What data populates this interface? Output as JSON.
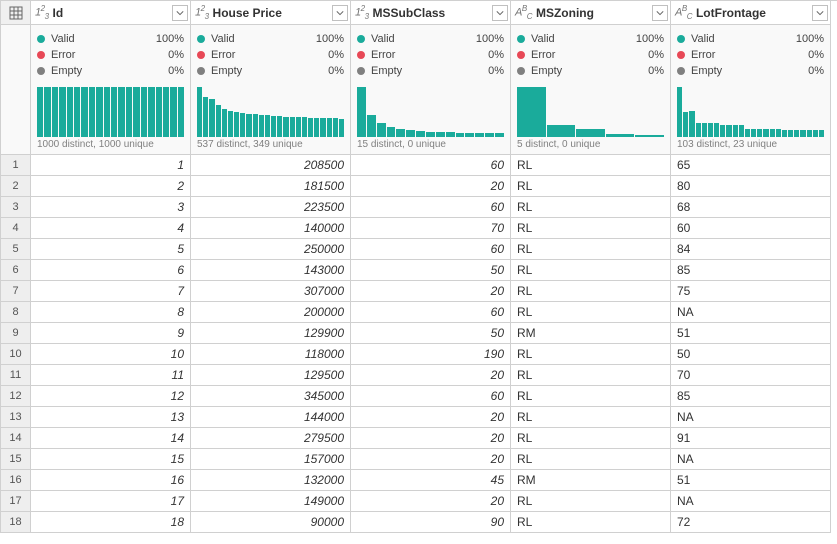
{
  "columns": [
    {
      "name": "Id",
      "dtype": "num",
      "valid": "100%",
      "error": "0%",
      "empty": "0%",
      "distinct": "1000 distinct, 1000 unique",
      "histogram": [
        50,
        50,
        50,
        50,
        50,
        50,
        50,
        50,
        50,
        50,
        50,
        50,
        50,
        50,
        50,
        50,
        50,
        50,
        50,
        50
      ]
    },
    {
      "name": "House Price",
      "dtype": "num",
      "valid": "100%",
      "error": "0%",
      "empty": "0%",
      "distinct": "537 distinct, 349 unique",
      "histogram": [
        50,
        40,
        38,
        32,
        28,
        26,
        25,
        24,
        23,
        23,
        22,
        22,
        21,
        21,
        20,
        20,
        20,
        20,
        19,
        19,
        19,
        19,
        19,
        18
      ]
    },
    {
      "name": "MSSubClass",
      "dtype": "num",
      "valid": "100%",
      "error": "0%",
      "empty": "0%",
      "distinct": "15 distinct, 0 unique",
      "histogram": [
        50,
        22,
        14,
        10,
        8,
        7,
        6,
        5,
        5,
        5,
        4,
        4,
        4,
        4,
        4
      ]
    },
    {
      "name": "MSZoning",
      "dtype": "text",
      "valid": "100%",
      "error": "0%",
      "empty": "0%",
      "distinct": "5 distinct, 0 unique",
      "histogram": [
        50,
        12,
        8,
        3,
        2
      ]
    },
    {
      "name": "LotFrontage",
      "dtype": "text",
      "valid": "100%",
      "error": "0%",
      "empty": "0%",
      "distinct": "103 distinct, 23 unique",
      "histogram": [
        50,
        25,
        26,
        14,
        14,
        14,
        14,
        12,
        12,
        12,
        12,
        8,
        8,
        8,
        8,
        8,
        8,
        7,
        7,
        7,
        7,
        7,
        7,
        7
      ]
    }
  ],
  "labels": {
    "valid": "Valid",
    "error": "Error",
    "empty": "Empty"
  },
  "colors": {
    "valid": "#1aab9b",
    "error": "#e74856",
    "empty": "#808080",
    "bar": "#1aab9b",
    "profile_bg": "#f9f9f9",
    "rowhdr_bg": "#eeeeee",
    "border": "#d0d0d0"
  },
  "rows": [
    [
      "1",
      "208500",
      "60",
      "RL",
      "65"
    ],
    [
      "2",
      "181500",
      "20",
      "RL",
      "80"
    ],
    [
      "3",
      "223500",
      "60",
      "RL",
      "68"
    ],
    [
      "4",
      "140000",
      "70",
      "RL",
      "60"
    ],
    [
      "5",
      "250000",
      "60",
      "RL",
      "84"
    ],
    [
      "6",
      "143000",
      "50",
      "RL",
      "85"
    ],
    [
      "7",
      "307000",
      "20",
      "RL",
      "75"
    ],
    [
      "8",
      "200000",
      "60",
      "RL",
      "NA"
    ],
    [
      "9",
      "129900",
      "50",
      "RM",
      "51"
    ],
    [
      "10",
      "118000",
      "190",
      "RL",
      "50"
    ],
    [
      "11",
      "129500",
      "20",
      "RL",
      "70"
    ],
    [
      "12",
      "345000",
      "60",
      "RL",
      "85"
    ],
    [
      "13",
      "144000",
      "20",
      "RL",
      "NA"
    ],
    [
      "14",
      "279500",
      "20",
      "RL",
      "91"
    ],
    [
      "15",
      "157000",
      "20",
      "RL",
      "NA"
    ],
    [
      "16",
      "132000",
      "45",
      "RM",
      "51"
    ],
    [
      "17",
      "149000",
      "20",
      "RL",
      "NA"
    ],
    [
      "18",
      "90000",
      "90",
      "RL",
      "72"
    ]
  ]
}
